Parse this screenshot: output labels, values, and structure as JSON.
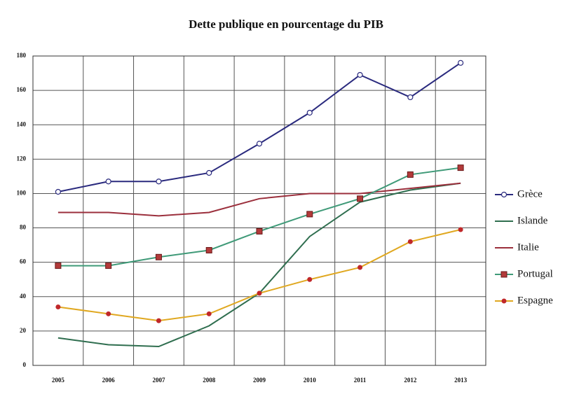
{
  "chart_data": {
    "type": "line",
    "title": "Dette publique en pourcentage du PIB",
    "categories": [
      "2005",
      "2006",
      "2007",
      "2008",
      "2009",
      "2010",
      "2011",
      "2012",
      "2013"
    ],
    "series": [
      {
        "name": "Grèce",
        "color": "#2a2a7e",
        "marker": "circle",
        "marker_color": "#ffffff",
        "values": [
          101,
          107,
          107,
          112,
          129,
          147,
          169,
          156,
          176
        ]
      },
      {
        "name": "Islande",
        "color": "#2f6e4f",
        "marker": "none",
        "marker_color": "#2f6e4f",
        "values": [
          16,
          12,
          11,
          23,
          42,
          75,
          95,
          102,
          106
        ]
      },
      {
        "name": "Italie",
        "color": "#9b2f3c",
        "marker": "none",
        "marker_color": "#9b2f3c",
        "values": [
          89,
          89,
          87,
          89,
          97,
          100,
          100,
          103,
          106
        ]
      },
      {
        "name": "Portugal",
        "color": "#3f9a78",
        "marker": "square",
        "marker_color": "#b23a3a",
        "values": [
          58,
          58,
          63,
          67,
          78,
          88,
          97,
          111,
          115
        ]
      },
      {
        "name": "Espagne",
        "color": "#e0a820",
        "marker": "dot",
        "marker_color": "#c0282a",
        "values": [
          34,
          30,
          26,
          30,
          42,
          50,
          57,
          72,
          79
        ]
      }
    ],
    "ylim": [
      0,
      180
    ],
    "yticks": [
      0,
      20,
      40,
      60,
      80,
      100,
      120,
      140,
      160,
      180
    ],
    "grid": true,
    "legend": "right"
  }
}
